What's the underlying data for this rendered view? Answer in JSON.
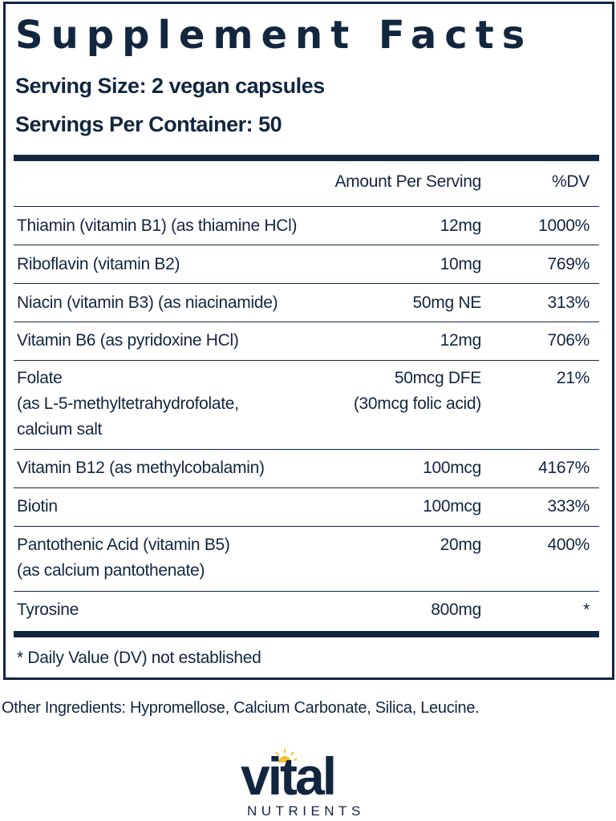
{
  "title": "Supplement Facts",
  "serving_size": "Serving Size: 2 vegan capsules",
  "servings_per_container": "Servings Per Container: 50",
  "header": {
    "amount": "Amount Per Serving",
    "dv": "%DV"
  },
  "rows": [
    {
      "name": "Thiamin (vitamin B1) (as thiamine HCl)",
      "amount": "12mg",
      "dv": "1000%"
    },
    {
      "name": "Riboflavin (vitamin B2)",
      "amount": "10mg",
      "dv": "769%"
    },
    {
      "name": "Niacin (vitamin B3) (as niacinamide)",
      "amount": "50mg NE",
      "dv": "313%"
    },
    {
      "name": "Vitamin B6 (as pyridoxine HCl)",
      "amount": "12mg",
      "dv": "706%"
    },
    {
      "name": "Folate",
      "name2": "(as L-5-methyltetrahydrofolate,",
      "name3": "calcium salt",
      "amount": "50mcg DFE",
      "amount2": "(30mcg folic acid)",
      "dv": "21%"
    },
    {
      "name": "Vitamin B12 (as methylcobalamin)",
      "amount": "100mcg",
      "dv": "4167%"
    },
    {
      "name": "Biotin",
      "amount": "100mcg",
      "dv": "333%"
    },
    {
      "name": "Pantothenic Acid (vitamin B5)",
      "name2": "(as calcium pantothenate)",
      "amount": "20mg",
      "dv": "400%"
    },
    {
      "name": "Tyrosine",
      "amount": "800mg",
      "dv": "*"
    }
  ],
  "footnote": "* Daily Value (DV) not established",
  "other_ingredients": "Other Ingredients: Hypromellose, Calcium Carbonate, Silica, Leucine.",
  "brand": {
    "word": "vital",
    "sub": "NUTRIENTS",
    "primary_color": "#12263f",
    "sun_color": "#f2c230"
  }
}
